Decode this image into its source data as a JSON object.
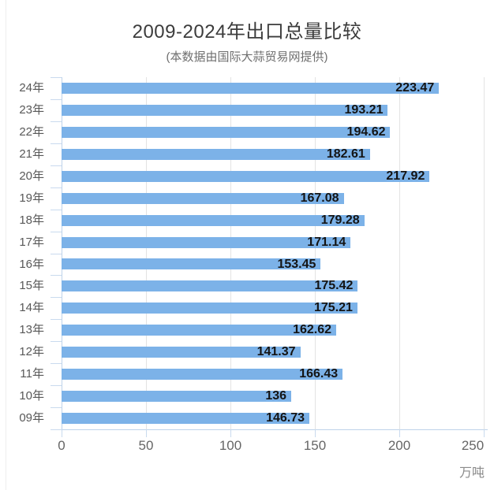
{
  "page": {
    "title": "2009-2024年出口总量比较",
    "subtitle": "(本数据由国际大蒜贸易网提供)",
    "unit": "万吨"
  },
  "chart_data": {
    "type": "bar",
    "orientation": "horizontal",
    "title": "2009-2024年出口总量比较",
    "subtitle": "(本数据由国际大蒜贸易网提供)",
    "categories": [
      "24年",
      "23年",
      "22年",
      "21年",
      "20年",
      "19年",
      "18年",
      "17年",
      "16年",
      "15年",
      "14年",
      "13年",
      "12年",
      "11年",
      "10年",
      "09年"
    ],
    "values": [
      223.47,
      193.21,
      194.62,
      182.61,
      217.92,
      167.08,
      179.28,
      171.14,
      153.45,
      175.42,
      175.21,
      162.62,
      141.37,
      166.43,
      136,
      146.73
    ],
    "value_labels": [
      "223.47",
      "193.21",
      "194.62",
      "182.61",
      "217.92",
      "167.08",
      "179.28",
      "171.14",
      "153.45",
      "175.42",
      "175.21",
      "162.62",
      "141.37",
      "166.43",
      "136",
      "146.73"
    ],
    "xlabel": "万吨",
    "ylabel": "",
    "xlim": [
      0,
      250
    ],
    "xticks": [
      0,
      50,
      100,
      150,
      200,
      250
    ],
    "grid": true,
    "legend": false,
    "bar_color": "#7CB2E8",
    "axis_color": "#bed3ea",
    "grid_color": "#e3e3e3",
    "value_label_color": "#141414",
    "category_label_color": "#585858"
  }
}
